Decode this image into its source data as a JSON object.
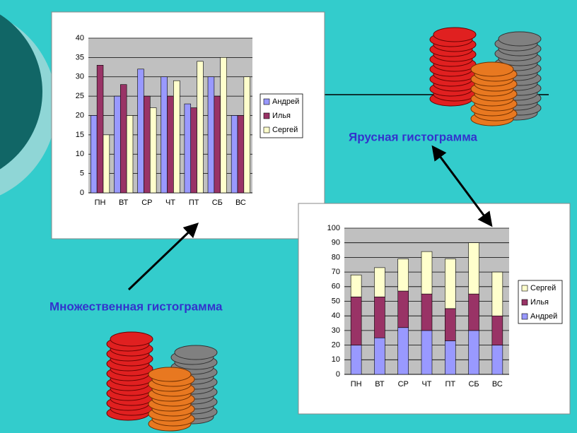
{
  "chart_data": [
    {
      "type": "bar",
      "title": "Множественная гистограмма",
      "categories": [
        "ПН",
        "ВТ",
        "СР",
        "ЧТ",
        "ПТ",
        "СБ",
        "ВС"
      ],
      "series": [
        {
          "name": "Андрей",
          "color": "#9999ff",
          "values": [
            20,
            25,
            32,
            30,
            23,
            30,
            20
          ]
        },
        {
          "name": "Илья",
          "color": "#993366",
          "values": [
            33,
            28,
            25,
            25,
            22,
            25,
            20
          ]
        },
        {
          "name": "Сергей",
          "color": "#ffffcc",
          "values": [
            15,
            20,
            22,
            29,
            34,
            35,
            30
          ]
        }
      ],
      "ylim": [
        0,
        40
      ],
      "yticks": [
        0,
        5,
        10,
        15,
        20,
        25,
        30,
        35,
        40
      ],
      "grid": true
    },
    {
      "type": "stacked",
      "title": "Ярусная гистограмма",
      "categories": [
        "ПН",
        "ВТ",
        "СР",
        "ЧТ",
        "ПТ",
        "СБ",
        "ВС"
      ],
      "series": [
        {
          "name": "Андрей",
          "color": "#9999ff",
          "values": [
            20,
            25,
            32,
            30,
            23,
            30,
            20
          ]
        },
        {
          "name": "Илья",
          "color": "#993366",
          "values": [
            33,
            28,
            25,
            25,
            22,
            25,
            20
          ]
        },
        {
          "name": "Сергей",
          "color": "#ffffcc",
          "values": [
            15,
            20,
            22,
            29,
            34,
            35,
            30
          ]
        }
      ],
      "ylim": [
        0,
        100
      ],
      "yticks": [
        0,
        10,
        20,
        30,
        40,
        50,
        60,
        70,
        80,
        90,
        100
      ],
      "grid": true
    }
  ]
}
